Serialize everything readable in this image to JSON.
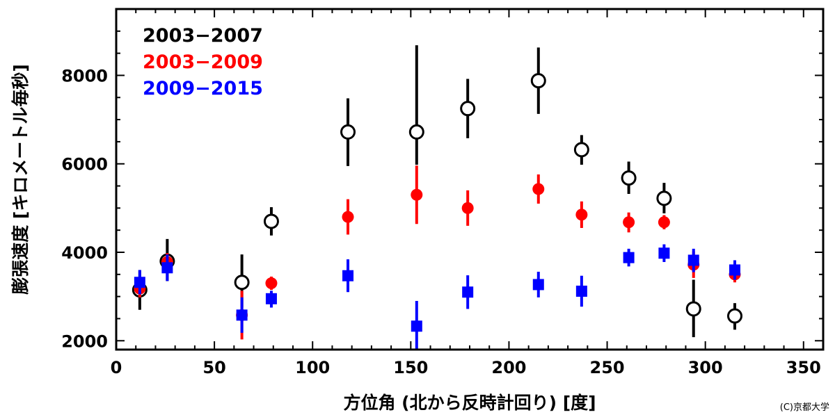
{
  "chart_data": {
    "type": "scatter",
    "xlabel": "方位角 (北から反時計回り) [度]",
    "ylabel": "膨張速度 [キロメートル毎秒]",
    "xlim": [
      0,
      360
    ],
    "ylim": [
      1800,
      9500
    ],
    "xticks": [
      "0",
      "50",
      "100",
      "150",
      "200",
      "250",
      "300",
      "350"
    ],
    "yticks": [
      "2000",
      "4000",
      "6000",
      "8000"
    ],
    "grid": false,
    "legend_position": "top-left",
    "series": [
      {
        "name": "2003−2007",
        "color": "#000000",
        "marker": "open-circle",
        "points": [
          {
            "x": 12,
            "y": 3150,
            "lo": 2700,
            "hi": 3600
          },
          {
            "x": 26,
            "y": 3800,
            "lo": 3350,
            "hi": 4300
          },
          {
            "x": 64,
            "y": 3320,
            "lo": 2750,
            "hi": 3950
          },
          {
            "x": 79,
            "y": 4700,
            "lo": 4380,
            "hi": 5020
          },
          {
            "x": 118,
            "y": 6720,
            "lo": 5950,
            "hi": 7480
          },
          {
            "x": 153,
            "y": 6720,
            "lo": 5980,
            "hi": 8680
          },
          {
            "x": 179,
            "y": 7250,
            "lo": 6580,
            "hi": 7920
          },
          {
            "x": 215,
            "y": 7880,
            "lo": 7130,
            "hi": 8630
          },
          {
            "x": 237,
            "y": 6320,
            "lo": 5980,
            "hi": 6650
          },
          {
            "x": 261,
            "y": 5680,
            "lo": 5320,
            "hi": 6050
          },
          {
            "x": 279,
            "y": 5220,
            "lo": 4880,
            "hi": 5570
          },
          {
            "x": 294,
            "y": 2720,
            "lo": 2080,
            "hi": 3380
          },
          {
            "x": 315,
            "y": 2560,
            "lo": 2250,
            "hi": 2850
          }
        ]
      },
      {
        "name": "2003−2009",
        "color": "#ff0000",
        "marker": "filled-circle",
        "points": [
          {
            "x": 12,
            "y": 3180,
            "lo": 2980,
            "hi": 3380
          },
          {
            "x": 26,
            "y": 3780,
            "lo": 3580,
            "hi": 3980
          },
          {
            "x": 64,
            "y": 2580,
            "lo": 2030,
            "hi": 3130
          },
          {
            "x": 79,
            "y": 3300,
            "lo": 3150,
            "hi": 3450
          },
          {
            "x": 118,
            "y": 4800,
            "lo": 4400,
            "hi": 5200
          },
          {
            "x": 153,
            "y": 5300,
            "lo": 4640,
            "hi": 5960
          },
          {
            "x": 179,
            "y": 5000,
            "lo": 4600,
            "hi": 5400
          },
          {
            "x": 215,
            "y": 5430,
            "lo": 5100,
            "hi": 5760
          },
          {
            "x": 237,
            "y": 4850,
            "lo": 4550,
            "hi": 5150
          },
          {
            "x": 261,
            "y": 4680,
            "lo": 4450,
            "hi": 4900
          },
          {
            "x": 279,
            "y": 4680,
            "lo": 4520,
            "hi": 4840
          },
          {
            "x": 294,
            "y": 3720,
            "lo": 3420,
            "hi": 4020
          },
          {
            "x": 315,
            "y": 3500,
            "lo": 3320,
            "hi": 3680
          }
        ]
      },
      {
        "name": "2009−2015",
        "color": "#0000ff",
        "marker": "filled-square",
        "points": [
          {
            "x": 12,
            "y": 3320,
            "lo": 3050,
            "hi": 3600
          },
          {
            "x": 26,
            "y": 3650,
            "lo": 3350,
            "hi": 3950
          },
          {
            "x": 64,
            "y": 2580,
            "lo": 2180,
            "hi": 2980
          },
          {
            "x": 79,
            "y": 2950,
            "lo": 2750,
            "hi": 3130
          },
          {
            "x": 118,
            "y": 3470,
            "lo": 3100,
            "hi": 3840
          },
          {
            "x": 153,
            "y": 2330,
            "lo": 1800,
            "hi": 2900
          },
          {
            "x": 179,
            "y": 3100,
            "lo": 2720,
            "hi": 3480
          },
          {
            "x": 215,
            "y": 3270,
            "lo": 2980,
            "hi": 3560
          },
          {
            "x": 237,
            "y": 3120,
            "lo": 2770,
            "hi": 3470
          },
          {
            "x": 261,
            "y": 3880,
            "lo": 3680,
            "hi": 4080
          },
          {
            "x": 279,
            "y": 3980,
            "lo": 3780,
            "hi": 4180
          },
          {
            "x": 294,
            "y": 3820,
            "lo": 3550,
            "hi": 4080
          },
          {
            "x": 315,
            "y": 3600,
            "lo": 3380,
            "hi": 3820
          }
        ]
      }
    ]
  },
  "credit": "(C)京都大学"
}
